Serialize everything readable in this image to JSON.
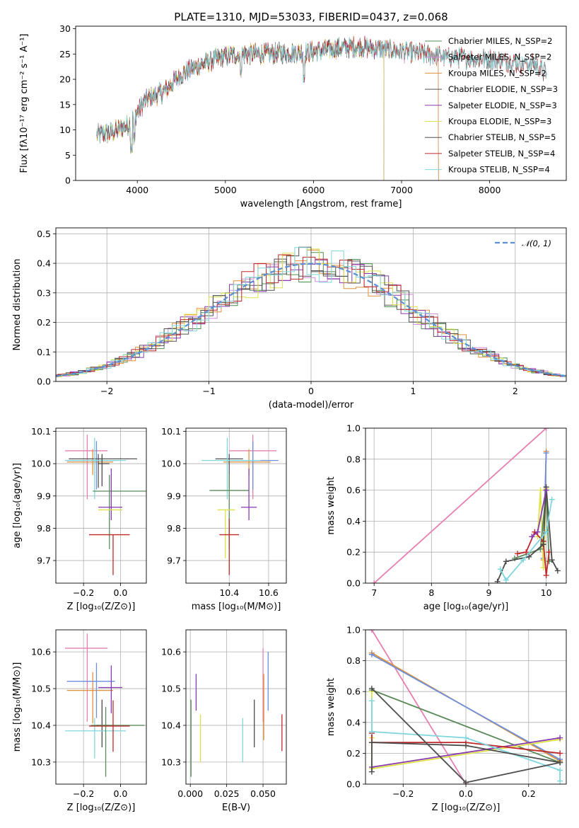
{
  "chart_data": [
    {
      "id": "spectrum",
      "type": "line",
      "title": "PLATE=1310, MJD=53033, FIBERID=0437, z=0.068",
      "xlabel": "wavelength [Angstrom, rest frame]",
      "ylabel": "Flux [fλ10⁻¹⁷ erg cm⁻² s⁻¹ A⁻¹]",
      "xlim": [
        3300,
        8870
      ],
      "ylim": [
        0,
        30.5
      ],
      "xticks": [
        4000,
        5000,
        6000,
        7000,
        8000
      ],
      "yticks": [
        0,
        5,
        10,
        15,
        20,
        25,
        30
      ],
      "legend": "right",
      "series": [
        {
          "name": "Chabrier MILES, N_SSP=2",
          "color": "#4f8f4f",
          "xrange": [
            3540,
            7420
          ]
        },
        {
          "name": "Salpeter MILES, N_SSP=2",
          "color": "#d08ad8",
          "xrange": [
            3540,
            7420
          ]
        },
        {
          "name": "Kroupa MILES, N_SSP=2",
          "color": "#e0903a",
          "xrange": [
            3540,
            7420
          ]
        },
        {
          "name": "Chabrier ELODIE, N_SSP=3",
          "color": "#555555",
          "xrange": [
            3540,
            6800
          ]
        },
        {
          "name": "Salpeter ELODIE, N_SSP=3",
          "color": "#8a3ab0",
          "xrange": [
            3540,
            6800
          ]
        },
        {
          "name": "Kroupa ELODIE, N_SSP=3",
          "color": "#dde24a",
          "xrange": [
            3540,
            6800
          ]
        },
        {
          "name": "Chabrier STELIB, N_SSP=5",
          "color": "#505050",
          "xrange": [
            3540,
            8650
          ]
        },
        {
          "name": "Salpeter STELIB, N_SSP=4",
          "color": "#c0282a",
          "xrange": [
            3540,
            8650
          ]
        },
        {
          "name": "Kroupa STELIB, N_SSP=4",
          "color": "#7fd6dc",
          "xrange": [
            3540,
            8650
          ]
        }
      ],
      "continuum": {
        "x": [
          3540,
          3700,
          3900,
          4000,
          4100,
          4300,
          4500,
          4800,
          5000,
          5200,
          5500,
          6000,
          6500,
          7000,
          7500,
          8000,
          8500,
          8650
        ],
        "y": [
          9,
          9.5,
          11,
          13.5,
          16,
          17.5,
          21,
          23.5,
          24.5,
          25,
          25,
          25.5,
          26.5,
          25.5,
          24.5,
          24,
          23,
          21
        ]
      }
    },
    {
      "id": "residuals",
      "type": "histogram",
      "xlabel": "(data-model)/error",
      "ylabel": "Normed distribution",
      "xlim": [
        -2.5,
        2.5
      ],
      "ylim": [
        0,
        0.52
      ],
      "xticks": [
        -2,
        -1,
        0,
        1,
        2
      ],
      "yticks": [
        0.0,
        0.1,
        0.2,
        0.3,
        0.4,
        0.5
      ],
      "legend": "top-right",
      "reference_curve": {
        "name": "𝒩(0, 1)",
        "mean": 0,
        "sigma": 1,
        "color": "#5b8fd6"
      },
      "bin_width": 0.12,
      "series_colors": [
        "#4f8f4f",
        "#d08ad8",
        "#e0903a",
        "#555555",
        "#8a3ab0",
        "#dde24a",
        "#505050",
        "#c0282a",
        "#7fd6dc"
      ]
    },
    {
      "id": "Z-age",
      "type": "errorbar",
      "xlabel": "Z [log₁₀(Z/Z⊙)]",
      "ylabel": "age  [log₁₀(age/yr)]",
      "xlim": [
        -0.35,
        0.14
      ],
      "ylim": [
        9.63,
        10.11
      ],
      "xticks": [
        -0.2,
        0.0
      ],
      "yticks": [
        9.7,
        9.8,
        9.9,
        10.0,
        10.1
      ],
      "points": [
        {
          "x": -0.18,
          "xerr": [
            0.12,
            0.11
          ],
          "y": 10.04,
          "yerr": [
            0.15,
            0.05
          ],
          "color": "#e67fb0"
        },
        {
          "x": -0.15,
          "xerr": [
            0.14,
            0.11
          ],
          "y": 10.005,
          "yerr": [
            0.04,
            0.04
          ],
          "color": "#e0903a"
        },
        {
          "x": -0.13,
          "xerr": [
            0.16,
            0.1
          ],
          "y": 10.01,
          "yerr": [
            0.09,
            0.06
          ],
          "color": "#6e8fdc"
        },
        {
          "x": -0.12,
          "xerr": [
            0.16,
            0.21
          ],
          "y": 10.015,
          "yerr": [
            0.09,
            0.015
          ],
          "color": "#555555"
        },
        {
          "x": -0.14,
          "xerr": [
            0.16,
            0.17
          ],
          "y": 10.01,
          "yerr": [
            0.12,
            0.07
          ],
          "color": "#7fd6dc"
        },
        {
          "x": -0.1,
          "xerr": [
            0.02,
            0.04
          ],
          "y": 10.0,
          "yerr": [
            0.07,
            0.03
          ],
          "color": "#4a4a4a"
        },
        {
          "x": -0.06,
          "xerr": [
            0.09,
            0.25
          ],
          "y": 9.915,
          "yerr": [
            0.18,
            0.05
          ],
          "color": "#5a8a5a"
        },
        {
          "x": -0.05,
          "xerr": [
            0.07,
            0.06
          ],
          "y": 9.865,
          "yerr": [
            0.04,
            0.12
          ],
          "color": "#8a3ab0"
        },
        {
          "x": -0.05,
          "xerr": [
            0.07,
            0.06
          ],
          "y": 9.857,
          "yerr": [
            0.0,
            0.0
          ],
          "color": "#dde24a"
        },
        {
          "x": -0.04,
          "xerr": [
            0.13,
            0.09
          ],
          "y": 9.78,
          "yerr": [
            0.125,
            0.0
          ],
          "color": "#c0282a"
        }
      ]
    },
    {
      "id": "mass-age",
      "type": "errorbar",
      "xlabel": "mass [log₁₀(M/M⊙)]",
      "ylabel": "",
      "xlim": [
        10.18,
        10.69
      ],
      "ylim": [
        9.63,
        10.11
      ],
      "xticks": [
        10.4,
        10.6
      ],
      "yticks": [
        9.7,
        9.8,
        9.9,
        10.0,
        10.1
      ],
      "points": [
        {
          "x": 10.52,
          "xerr": [
            0.12,
            0.12
          ],
          "y": 10.04,
          "yerr": [
            0.15,
            0.05
          ],
          "color": "#e67fb0"
        },
        {
          "x": 10.5,
          "xerr": [
            0.13,
            0.11
          ],
          "y": 10.005,
          "yerr": [
            0.04,
            0.04
          ],
          "color": "#e0903a"
        },
        {
          "x": 10.52,
          "xerr": [
            0.13,
            0.13
          ],
          "y": 10.01,
          "yerr": [
            0.09,
            0.06
          ],
          "color": "#6e8fdc"
        },
        {
          "x": 10.4,
          "xerr": [
            0.07,
            0.07
          ],
          "y": 10.015,
          "yerr": [
            0.09,
            0.015
          ],
          "color": "#555555"
        },
        {
          "x": 10.39,
          "xerr": [
            0.13,
            0.17
          ],
          "y": 10.01,
          "yerr": [
            0.12,
            0.07
          ],
          "color": "#7fd6dc"
        },
        {
          "x": 10.4,
          "xerr": [
            0.1,
            0.1
          ],
          "y": 9.917,
          "yerr": [
            0.18,
            0.05
          ],
          "color": "#5a8a5a"
        },
        {
          "x": 10.5,
          "xerr": [
            0.04,
            0.04
          ],
          "y": 9.865,
          "yerr": [
            0.04,
            0.12
          ],
          "color": "#8a3ab0"
        },
        {
          "x": 10.38,
          "xerr": [
            0.04,
            0.05
          ],
          "y": 9.857,
          "yerr": [
            0.15,
            0.0
          ],
          "color": "#dde24a"
        },
        {
          "x": 10.4,
          "xerr": [
            0.05,
            0.05
          ],
          "y": 9.78,
          "yerr": [
            0.125,
            0.05
          ],
          "color": "#c0282a"
        }
      ]
    },
    {
      "id": "age-weight",
      "type": "line",
      "xlabel": "age  [log₁₀(age/yr)]",
      "ylabel": "mass weight",
      "xlim": [
        6.85,
        10.35
      ],
      "ylim": [
        0,
        1.0
      ],
      "xticks": [
        7,
        8,
        9,
        10
      ],
      "yticks": [
        0.0,
        0.2,
        0.4,
        0.6,
        0.8,
        1.0
      ],
      "series": [
        {
          "color": "#e67fb0",
          "x": [
            7.0,
            10.0
          ],
          "y": [
            0.0,
            1.0
          ]
        },
        {
          "color": "#e0903a",
          "x": [
            9.95,
            10.0
          ],
          "y": [
            0.15,
            0.85
          ]
        },
        {
          "color": "#6e8fdc",
          "x": [
            9.95,
            10.0
          ],
          "y": [
            0.16,
            0.84
          ]
        },
        {
          "color": "#dde24a",
          "x": [
            9.85,
            9.9,
            9.95,
            10.0
          ],
          "y": [
            0.3,
            0.6,
            0.1,
            0.61
          ]
        },
        {
          "color": "#5a8a5a",
          "x": [
            9.45,
            9.9,
            10.0,
            10.05
          ],
          "y": [
            0.16,
            0.22,
            0.6,
            0.14
          ]
        },
        {
          "color": "#c0282a",
          "x": [
            9.5,
            9.65,
            9.8,
            9.95,
            10.0,
            10.05
          ],
          "y": [
            0.19,
            0.2,
            0.33,
            0.27,
            0.05,
            0.2
          ]
        },
        {
          "color": "#4a4a4a",
          "x": [
            9.15,
            9.3,
            9.7,
            9.95,
            10.0,
            10.1,
            10.2
          ],
          "y": [
            0.01,
            0.14,
            0.17,
            0.25,
            0.62,
            0.15,
            0.08
          ]
        },
        {
          "color": "#7fd6dc",
          "x": [
            9.2,
            9.3,
            9.6,
            10.0,
            10.1
          ],
          "y": [
            0.09,
            0.02,
            0.15,
            0.33,
            0.54
          ]
        },
        {
          "color": "#8a3ab0",
          "x": [
            9.75,
            9.85,
            10.0
          ],
          "y": [
            0.3,
            0.33,
            0.6
          ]
        }
      ]
    },
    {
      "id": "Z-mass",
      "type": "errorbar",
      "xlabel": "Z [log₁₀(Z/Z⊙)]",
      "ylabel": "mass [log₁₀(M/M⊙)]",
      "xlim": [
        -0.35,
        0.14
      ],
      "ylim": [
        10.24,
        10.66
      ],
      "xticks": [
        -0.2,
        0.0
      ],
      "yticks": [
        10.3,
        10.4,
        10.5,
        10.6
      ],
      "points": [
        {
          "x": -0.18,
          "xerr": [
            0.12,
            0.11
          ],
          "y": 10.61,
          "yerr": [
            0.2,
            0.04
          ],
          "color": "#e67fb0"
        },
        {
          "x": -0.15,
          "xerr": [
            0.14,
            0.11
          ],
          "y": 10.495,
          "yerr": [
            0.09,
            0.05
          ],
          "color": "#e0903a"
        },
        {
          "x": -0.13,
          "xerr": [
            0.16,
            0.1
          ],
          "y": 10.52,
          "yerr": [
            0.1,
            0.05
          ],
          "color": "#6e8fdc"
        },
        {
          "x": -0.1,
          "xerr": [
            0.03,
            0.04
          ],
          "y": 10.4,
          "yerr": [
            0.06,
            0.07
          ],
          "color": "#4a4a4a"
        },
        {
          "x": -0.14,
          "xerr": [
            0.16,
            0.17
          ],
          "y": 10.385,
          "yerr": [
            0.075,
            0.035
          ],
          "color": "#7fd6dc"
        },
        {
          "x": -0.08,
          "xerr": [
            0.08,
            0.21
          ],
          "y": 10.4,
          "yerr": [
            0.14,
            0.05
          ],
          "color": "#5a8a5a"
        },
        {
          "x": -0.05,
          "xerr": [
            0.07,
            0.06
          ],
          "y": 10.503,
          "yerr": [
            0.07,
            0.06
          ],
          "color": "#8a3ab0"
        },
        {
          "x": -0.04,
          "xerr": [
            0.13,
            0.09
          ],
          "y": 10.398,
          "yerr": [
            0.07,
            0.07
          ],
          "color": "#c0282a"
        }
      ]
    },
    {
      "id": "EBV-mass",
      "type": "errorbar",
      "xlabel": "E(B-V)",
      "ylabel": "",
      "xlim": [
        -0.003,
        0.066
      ],
      "ylim": [
        10.24,
        10.66
      ],
      "xticks": [
        0.0,
        0.025,
        0.05
      ],
      "yticks": [
        10.3,
        10.4,
        10.5,
        10.6
      ],
      "points": [
        {
          "x": 0.0005,
          "yerr": [
            0.14,
            0.07
          ],
          "y": 10.4,
          "color": "#5a8a5a"
        },
        {
          "x": 0.004,
          "yerr": [
            0.05,
            0.05
          ],
          "y": 10.49,
          "color": "#8a3ab0"
        },
        {
          "x": 0.007,
          "yerr": [
            0.07,
            0.06
          ],
          "y": 10.37,
          "color": "#dde24a"
        },
        {
          "x": 0.036,
          "yerr": [
            0.08,
            0.04
          ],
          "y": 10.38,
          "color": "#7fd6dc"
        },
        {
          "x": 0.044,
          "yerr": [
            0.06,
            0.07
          ],
          "y": 10.4,
          "color": "#4a4a4a"
        },
        {
          "x": 0.05,
          "yerr": [
            0.15,
            0.05
          ],
          "y": 10.56,
          "color": "#e67fb0"
        },
        {
          "x": 0.0505,
          "yerr": [
            0.14,
            0.04
          ],
          "y": 10.5,
          "color": "#e0903a"
        },
        {
          "x": 0.0535,
          "yerr": [
            0.1,
            0.06
          ],
          "y": 10.54,
          "color": "#6e8fdc"
        },
        {
          "x": 0.063,
          "yerr": [
            0.05,
            0.05
          ],
          "y": 10.38,
          "color": "#c0282a"
        }
      ]
    },
    {
      "id": "Z-weight",
      "type": "line",
      "xlabel": "Z [log₁₀(Z/Z⊙)]",
      "ylabel": "mass weight",
      "xlim": [
        -0.32,
        0.32
      ],
      "ylim": [
        0,
        1.0
      ],
      "xticks": [
        -0.2,
        0.0,
        0.2
      ],
      "yticks": [
        0.0,
        0.2,
        0.4,
        0.6,
        0.8,
        1.0
      ],
      "series": [
        {
          "color": "#e67fb0",
          "x": [
            -0.3,
            0.0
          ],
          "y": [
            1.0,
            0.0
          ]
        },
        {
          "color": "#e0903a",
          "x": [
            -0.3,
            0.3
          ],
          "y": [
            0.85,
            0.15
          ]
        },
        {
          "color": "#6e8fdc",
          "x": [
            -0.3,
            0.3
          ],
          "y": [
            0.84,
            0.16
          ]
        },
        {
          "color": "#5a8a5a",
          "x": [
            -0.3,
            0.3
          ],
          "y": [
            0.61,
            0.14
          ]
        },
        {
          "color": "#dde24a",
          "x": [
            -0.3,
            -0.3,
            -0.3,
            0.3
          ],
          "y": [
            0.6,
            0.3,
            0.1,
            0.29
          ]
        },
        {
          "color": "#8a3ab0",
          "x": [
            -0.3,
            0.3
          ],
          "y": [
            0.11,
            0.3
          ]
        },
        {
          "color": "#c0282a",
          "x": [
            -0.3,
            -0.3,
            0.0,
            0.3
          ],
          "y": [
            0.33,
            0.27,
            0.27,
            0.2
          ]
        },
        {
          "color": "#7fd6dc",
          "x": [
            -0.3,
            -0.3,
            0.0,
            0.3,
            0.3
          ],
          "y": [
            0.54,
            0.34,
            0.3,
            0.09,
            0.02
          ]
        },
        {
          "color": "#4a4a4a",
          "x": [
            -0.3,
            -0.3,
            0.0,
            0.3
          ],
          "y": [
            0.08,
            0.27,
            0.25,
            0.14
          ]
        },
        {
          "color": "#505050",
          "x": [
            -0.3,
            0.0,
            0.3
          ],
          "y": [
            0.62,
            0.01,
            0.14
          ]
        }
      ]
    }
  ]
}
